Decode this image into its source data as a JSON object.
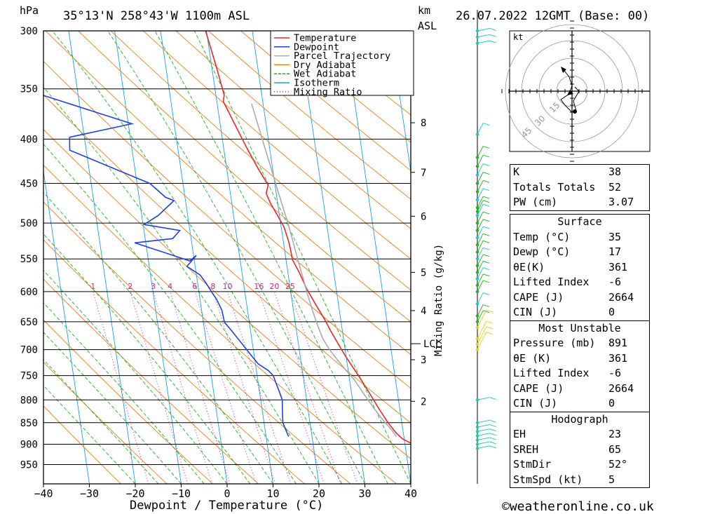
{
  "header": {
    "units_left": "hPa",
    "location": "35°13'N 258°43'W 1100m ASL",
    "units_km": "km",
    "units_asl": "ASL",
    "datetime": "26.07.2022 12GMT (Base: 00)"
  },
  "footer": {
    "xlabel": "Dewpoint / Temperature (°C)",
    "mixing_axis": "Mixing Ratio (g/kg)",
    "copyright": "©weatheronline.co.uk"
  },
  "legend": [
    {
      "label": "Temperature",
      "color": "#e8262b",
      "style": "solid"
    },
    {
      "label": "Dewpoint",
      "color": "#2240e0",
      "style": "solid"
    },
    {
      "label": "Parcel Trajectory",
      "color": "#aaaaaa",
      "style": "solid"
    },
    {
      "label": "Dry Adiabat",
      "color": "#e8801a",
      "style": "solid"
    },
    {
      "label": "Wet Adiabat",
      "color": "#20b020",
      "style": "dashed"
    },
    {
      "label": "Isotherm",
      "color": "#1aa0e0",
      "style": "solid"
    },
    {
      "label": "Mixing Ratio",
      "color": "#d0208a",
      "style": "dotted"
    }
  ],
  "indices": [
    {
      "label": "K",
      "value": "38"
    },
    {
      "label": "Totals Totals",
      "value": "52"
    },
    {
      "label": "PW (cm)",
      "value": "3.07"
    }
  ],
  "surface": {
    "title": "Surface",
    "rows": [
      {
        "label": "Temp (°C)",
        "value": "35"
      },
      {
        "label": "Dewp (°C)",
        "value": "17"
      },
      {
        "label": "θE(K)",
        "value": "361"
      },
      {
        "label": "Lifted Index",
        "value": "-6"
      },
      {
        "label": "CAPE (J)",
        "value": "2664"
      },
      {
        "label": "CIN (J)",
        "value": "0"
      }
    ]
  },
  "most_unstable": {
    "title": "Most Unstable",
    "rows": [
      {
        "label": "Pressure (mb)",
        "value": "891"
      },
      {
        "label": "θE (K)",
        "value": "361"
      },
      {
        "label": "Lifted Index",
        "value": "-6"
      },
      {
        "label": "CAPE (J)",
        "value": "2664"
      },
      {
        "label": "CIN (J)",
        "value": "0"
      }
    ]
  },
  "hodograph": {
    "title": "Hodograph",
    "unit_label": "kt",
    "ring_labels": [
      "15",
      "30",
      "45"
    ],
    "rows": [
      {
        "label": "EH",
        "value": "23"
      },
      {
        "label": "SREH",
        "value": "65"
      },
      {
        "label": "StmDir",
        "value": "52°"
      },
      {
        "label": "StmSpd (kt)",
        "value": "5"
      }
    ]
  },
  "chart_data": {
    "type": "line",
    "title": "35°13'N 258°43'W 1100m ASL",
    "xlabel": "Dewpoint / Temperature (°C)",
    "ylabel": "hPa",
    "xlim": [
      -40,
      40
    ],
    "ylim": [
      300,
      1000
    ],
    "x_ticks": [
      -40,
      -30,
      -20,
      -10,
      0,
      10,
      20,
      30,
      40
    ],
    "pressure_levels": [
      300,
      350,
      400,
      450,
      500,
      550,
      600,
      650,
      700,
      750,
      800,
      850,
      900,
      950
    ],
    "km_ticks": [
      {
        "label": "8",
        "p": 383
      },
      {
        "label": "7",
        "p": 437
      },
      {
        "label": "6",
        "p": 491
      },
      {
        "label": "5",
        "p": 570
      },
      {
        "label": "4",
        "p": 631
      },
      {
        "label": "3",
        "p": 719
      },
      {
        "label": "2",
        "p": 803
      }
    ],
    "lcl": {
      "label": "LCL",
      "p": 689
    },
    "mixing_ratio_labels": [
      "1",
      "2",
      "3",
      "4",
      "6",
      "8",
      "10",
      "16",
      "20",
      "25"
    ],
    "series": [
      {
        "name": "Temperature",
        "color": "#e8262b",
        "points": [
          [
            9.8,
            300
          ],
          [
            11.0,
            330
          ],
          [
            11.8,
            356
          ],
          [
            11.4,
            362
          ],
          [
            13.0,
            382
          ],
          [
            15.0,
            409
          ],
          [
            16.8,
            432
          ],
          [
            18.5,
            452
          ],
          [
            17.8,
            462
          ],
          [
            18.4,
            474
          ],
          [
            19.7,
            492
          ],
          [
            20.6,
            505
          ],
          [
            21.1,
            523
          ],
          [
            21.3,
            534
          ],
          [
            21.4,
            551
          ],
          [
            22.5,
            571
          ],
          [
            23.6,
            596
          ],
          [
            25.1,
            622
          ],
          [
            26.4,
            644
          ],
          [
            27.5,
            667
          ],
          [
            28.7,
            690
          ],
          [
            29.9,
            713
          ],
          [
            31.2,
            735
          ],
          [
            32.4,
            756
          ],
          [
            34.1,
            790
          ],
          [
            35.5,
            820
          ],
          [
            37.0,
            850
          ],
          [
            38.4,
            873
          ],
          [
            39.6,
            887
          ],
          [
            41.2,
            897
          ]
        ]
      },
      {
        "name": "Dewpoint",
        "color": "#2240e0",
        "points": [
          [
            -27.3,
            300
          ],
          [
            -27.5,
            330
          ],
          [
            -27.7,
            356
          ],
          [
            -9.2,
            384
          ],
          [
            -23.2,
            398
          ],
          [
            -23.6,
            412
          ],
          [
            -7.2,
            450
          ],
          [
            -4.2,
            467
          ],
          [
            -2.5,
            471
          ],
          [
            -6.4,
            490
          ],
          [
            -9.8,
            502
          ],
          [
            -2.2,
            510
          ],
          [
            -4.0,
            521
          ],
          [
            -12.4,
            527
          ],
          [
            -1.0,
            553
          ],
          [
            0.6,
            545
          ],
          [
            -1.8,
            561
          ],
          [
            0.8,
            574
          ],
          [
            1.8,
            586
          ],
          [
            2.8,
            601
          ],
          [
            3.6,
            612
          ],
          [
            4.4,
            630
          ],
          [
            4.6,
            651
          ],
          [
            6.0,
            667
          ],
          [
            7.8,
            690
          ],
          [
            9.3,
            710
          ],
          [
            10.6,
            727
          ],
          [
            12.6,
            740
          ],
          [
            13.5,
            750
          ],
          [
            13.9,
            766
          ],
          [
            14.4,
            786
          ],
          [
            14.7,
            800
          ],
          [
            14.3,
            830
          ],
          [
            14.1,
            850
          ],
          [
            14.6,
            870
          ],
          [
            14.9,
            882
          ]
        ]
      },
      {
        "name": "Parcel Trajectory",
        "color": "#aaaaaa",
        "points": [
          [
            17.5,
            364
          ],
          [
            18.2,
            385
          ],
          [
            19.0,
            410
          ],
          [
            19.8,
            436
          ],
          [
            20.4,
            458
          ],
          [
            21.0,
            479
          ],
          [
            21.6,
            500
          ],
          [
            22.0,
            520
          ],
          [
            22.4,
            541
          ],
          [
            22.8,
            562
          ],
          [
            23.2,
            583
          ],
          [
            23.6,
            605
          ],
          [
            24.2,
            633
          ],
          [
            24.8,
            657
          ],
          [
            25.5,
            680
          ],
          [
            26.6,
            700
          ],
          [
            27.9,
            718
          ],
          [
            29.4,
            738
          ],
          [
            31.0,
            758
          ],
          [
            32.8,
            790
          ],
          [
            34.4,
            818
          ],
          [
            35.8,
            841
          ],
          [
            37.4,
            864
          ],
          [
            38.4,
            882
          ]
        ]
      }
    ]
  }
}
